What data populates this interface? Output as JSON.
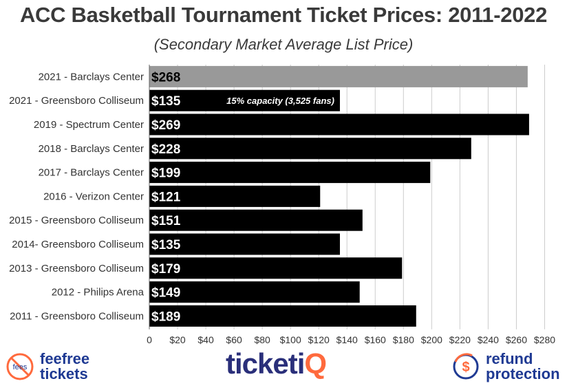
{
  "title": "ACC Basketball Tournament Ticket Prices: 2011-2022",
  "subtitle": "(Secondary Market Average List Price)",
  "chart_data": {
    "type": "bar",
    "orientation": "horizontal",
    "categories": [
      "2021 - Barclays Center",
      "2021 - Greensboro Colliseum",
      "2019 - Spectrum Center",
      "2018 - Barclays Center",
      "2017 - Barclays Center",
      "2016 - Verizon Center",
      "2015 - Greensboro Colliseum",
      "2014- Greensboro Colliseum",
      "2013 - Greensboro Colliseum",
      "2012 - Philips Arena",
      "2011 - Greensboro Colliseum"
    ],
    "values": [
      268,
      135,
      269,
      228,
      199,
      121,
      151,
      135,
      179,
      149,
      189
    ],
    "data_labels": [
      "$268",
      "$135",
      "$269",
      "$228",
      "$199",
      "$121",
      "$151",
      "$135",
      "$179",
      "$149",
      "$189"
    ],
    "bar_colors": [
      "#999999",
      "#000000",
      "#000000",
      "#000000",
      "#000000",
      "#000000",
      "#000000",
      "#000000",
      "#000000",
      "#000000",
      "#000000"
    ],
    "annotations": [
      {
        "category_index": 1,
        "text": "15% capacity (3,525 fans)"
      }
    ],
    "xlim": [
      0,
      290
    ],
    "x_ticks": [
      0,
      20,
      40,
      60,
      80,
      100,
      120,
      140,
      160,
      180,
      200,
      220,
      240,
      260,
      280
    ],
    "x_tick_labels": [
      "0",
      "$20",
      "$40",
      "$60",
      "$80",
      "$100",
      "$120",
      "$140",
      "$160",
      "$180",
      "$200",
      "$220",
      "$240",
      "$260",
      "$280"
    ],
    "grid": true,
    "xlabel": "",
    "ylabel": ""
  },
  "footer": {
    "left_brand": {
      "line1": "feefree",
      "line2": "tickets",
      "icon": "no-fees-icon",
      "icon_text": "fees"
    },
    "center_brand": {
      "main": "ticketi",
      "accent": "Q"
    },
    "right_brand": {
      "line1": "refund",
      "line2": "protection",
      "icon": "dollar-circle-icon",
      "icon_text": "$"
    }
  },
  "colors": {
    "brand_navy": "#1f3a93",
    "brand_orange": "#ff6a3d",
    "ticketiq_navy": "#2a2f7a"
  }
}
